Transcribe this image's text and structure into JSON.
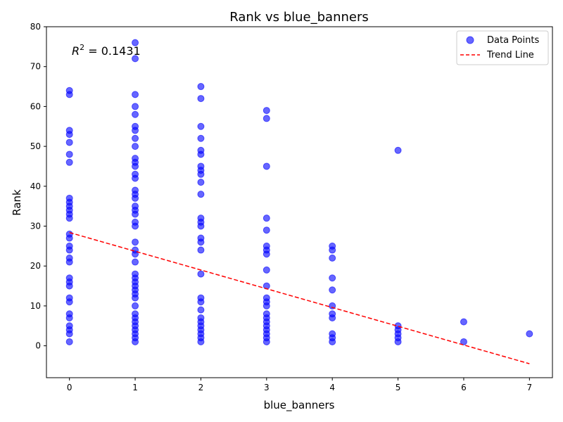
{
  "chart_data": {
    "type": "scatter",
    "title": "Rank vs blue_banners",
    "xlabel": "blue_banners",
    "ylabel": "Rank",
    "xlim": [
      -0.35,
      7.35
    ],
    "ylim": [
      -8,
      80
    ],
    "xticks": [
      0,
      1,
      2,
      3,
      4,
      5,
      6,
      7
    ],
    "yticks": [
      0,
      10,
      20,
      30,
      40,
      50,
      60,
      70,
      80
    ],
    "legend_position": "top-right",
    "annotation": {
      "text_prefix": "R",
      "superscript": "2",
      "text_suffix": " = 0.1431"
    },
    "series": [
      {
        "name": "Data Points",
        "color": "#0000ff",
        "points": [
          [
            0,
            64
          ],
          [
            0,
            63
          ],
          [
            0,
            54
          ],
          [
            0,
            53
          ],
          [
            0,
            51
          ],
          [
            0,
            48
          ],
          [
            0,
            46
          ],
          [
            0,
            37
          ],
          [
            0,
            36
          ],
          [
            0,
            35
          ],
          [
            0,
            34
          ],
          [
            0,
            33
          ],
          [
            0,
            32
          ],
          [
            0,
            28
          ],
          [
            0,
            27
          ],
          [
            0,
            25
          ],
          [
            0,
            24
          ],
          [
            0,
            22
          ],
          [
            0,
            21
          ],
          [
            0,
            17
          ],
          [
            0,
            16
          ],
          [
            0,
            15
          ],
          [
            0,
            12
          ],
          [
            0,
            11
          ],
          [
            0,
            8
          ],
          [
            0,
            7
          ],
          [
            0,
            5
          ],
          [
            0,
            4
          ],
          [
            0,
            3
          ],
          [
            0,
            1
          ],
          [
            1,
            76
          ],
          [
            1,
            72
          ],
          [
            1,
            63
          ],
          [
            1,
            60
          ],
          [
            1,
            58
          ],
          [
            1,
            55
          ],
          [
            1,
            54
          ],
          [
            1,
            52
          ],
          [
            1,
            50
          ],
          [
            1,
            47
          ],
          [
            1,
            46
          ],
          [
            1,
            45
          ],
          [
            1,
            43
          ],
          [
            1,
            42
          ],
          [
            1,
            39
          ],
          [
            1,
            38
          ],
          [
            1,
            37
          ],
          [
            1,
            35
          ],
          [
            1,
            34
          ],
          [
            1,
            33
          ],
          [
            1,
            31
          ],
          [
            1,
            30
          ],
          [
            1,
            26
          ],
          [
            1,
            24
          ],
          [
            1,
            23
          ],
          [
            1,
            21
          ],
          [
            1,
            18
          ],
          [
            1,
            17
          ],
          [
            1,
            16
          ],
          [
            1,
            15
          ],
          [
            1,
            14
          ],
          [
            1,
            13
          ],
          [
            1,
            12
          ],
          [
            1,
            10
          ],
          [
            1,
            8
          ],
          [
            1,
            7
          ],
          [
            1,
            6
          ],
          [
            1,
            5
          ],
          [
            1,
            4
          ],
          [
            1,
            3
          ],
          [
            1,
            2
          ],
          [
            1,
            1
          ],
          [
            2,
            65
          ],
          [
            2,
            62
          ],
          [
            2,
            55
          ],
          [
            2,
            52
          ],
          [
            2,
            49
          ],
          [
            2,
            48
          ],
          [
            2,
            45
          ],
          [
            2,
            44
          ],
          [
            2,
            43
          ],
          [
            2,
            41
          ],
          [
            2,
            38
          ],
          [
            2,
            32
          ],
          [
            2,
            31
          ],
          [
            2,
            30
          ],
          [
            2,
            27
          ],
          [
            2,
            26
          ],
          [
            2,
            24
          ],
          [
            2,
            18
          ],
          [
            2,
            12
          ],
          [
            2,
            11
          ],
          [
            2,
            9
          ],
          [
            2,
            7
          ],
          [
            2,
            6
          ],
          [
            2,
            5
          ],
          [
            2,
            4
          ],
          [
            2,
            3
          ],
          [
            2,
            2
          ],
          [
            2,
            1
          ],
          [
            3,
            59
          ],
          [
            3,
            57
          ],
          [
            3,
            45
          ],
          [
            3,
            32
          ],
          [
            3,
            29
          ],
          [
            3,
            25
          ],
          [
            3,
            24
          ],
          [
            3,
            23
          ],
          [
            3,
            19
          ],
          [
            3,
            15
          ],
          [
            3,
            12
          ],
          [
            3,
            11
          ],
          [
            3,
            10
          ],
          [
            3,
            8
          ],
          [
            3,
            7
          ],
          [
            3,
            6
          ],
          [
            3,
            5
          ],
          [
            3,
            4
          ],
          [
            3,
            3
          ],
          [
            3,
            2
          ],
          [
            3,
            1
          ],
          [
            4,
            25
          ],
          [
            4,
            24
          ],
          [
            4,
            22
          ],
          [
            4,
            17
          ],
          [
            4,
            14
          ],
          [
            4,
            10
          ],
          [
            4,
            8
          ],
          [
            4,
            7
          ],
          [
            4,
            3
          ],
          [
            4,
            2
          ],
          [
            4,
            1
          ],
          [
            5,
            49
          ],
          [
            5,
            5
          ],
          [
            5,
            4
          ],
          [
            5,
            3
          ],
          [
            5,
            2
          ],
          [
            5,
            1
          ],
          [
            6,
            6
          ],
          [
            6,
            1
          ],
          [
            7,
            3
          ]
        ]
      },
      {
        "name": "Trend Line",
        "color": "#ff0000",
        "line": [
          [
            0,
            28.4
          ],
          [
            7,
            -4.5
          ]
        ]
      }
    ]
  }
}
